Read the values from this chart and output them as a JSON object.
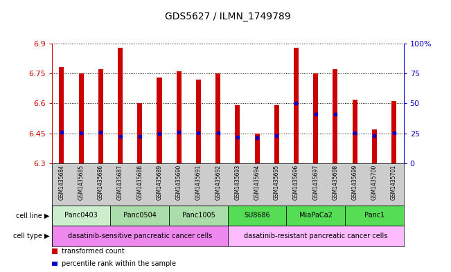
{
  "title": "GDS5627 / ILMN_1749789",
  "samples": [
    "GSM1435684",
    "GSM1435685",
    "GSM1435686",
    "GSM1435687",
    "GSM1435688",
    "GSM1435689",
    "GSM1435690",
    "GSM1435691",
    "GSM1435692",
    "GSM1435693",
    "GSM1435694",
    "GSM1435695",
    "GSM1435696",
    "GSM1435697",
    "GSM1435698",
    "GSM1435699",
    "GSM1435700",
    "GSM1435701"
  ],
  "bar_heights": [
    6.78,
    6.75,
    6.77,
    6.88,
    6.6,
    6.73,
    6.76,
    6.72,
    6.75,
    6.59,
    6.45,
    6.59,
    6.88,
    6.75,
    6.77,
    6.62,
    6.47,
    6.61
  ],
  "percentile_values": [
    6.455,
    6.452,
    6.455,
    6.435,
    6.435,
    6.447,
    6.454,
    6.452,
    6.453,
    6.432,
    6.428,
    6.437,
    6.6,
    6.545,
    6.545,
    6.452,
    6.438,
    6.452
  ],
  "ymin": 6.3,
  "ymax": 6.9,
  "yticks": [
    6.3,
    6.45,
    6.6,
    6.75,
    6.9
  ],
  "ytick_labels": [
    "6.3",
    "6.45",
    "6.6",
    "6.75",
    "6.9"
  ],
  "right_yticks": [
    0,
    25,
    50,
    75,
    100
  ],
  "right_ytick_labels": [
    "0",
    "25",
    "50",
    "75",
    "100%"
  ],
  "bar_color": "#cc0000",
  "dot_color": "#0000cc",
  "bar_width": 0.25,
  "cell_lines": [
    {
      "name": "Panc0403",
      "start": 0,
      "end": 3
    },
    {
      "name": "Panc0504",
      "start": 3,
      "end": 6
    },
    {
      "name": "Panc1005",
      "start": 6,
      "end": 9
    },
    {
      "name": "SU8686",
      "start": 9,
      "end": 12
    },
    {
      "name": "MiaPaCa2",
      "start": 12,
      "end": 15
    },
    {
      "name": "Panc1",
      "start": 15,
      "end": 18
    }
  ],
  "cell_line_colors": {
    "Panc0403": "#cceecc",
    "Panc0504": "#aaddaa",
    "Panc1005": "#aaddaa",
    "SU8686": "#55dd55",
    "MiaPaCa2": "#55dd55",
    "Panc1": "#55dd55"
  },
  "cell_types": [
    {
      "name": "dasatinib-sensitive pancreatic cancer cells",
      "start": 0,
      "end": 9,
      "color": "#ee88ee"
    },
    {
      "name": "dasatinib-resistant pancreatic cancer cells",
      "start": 9,
      "end": 18,
      "color": "#ffbbff"
    }
  ],
  "grid_color": "black",
  "axis_color_left": "#cc0000",
  "axis_color_right": "#0000cc",
  "main_bg": "#ffffff",
  "tick_area_bg": "#cccccc",
  "legend_red_label": "transformed count",
  "legend_blue_label": "percentile rank within the sample"
}
